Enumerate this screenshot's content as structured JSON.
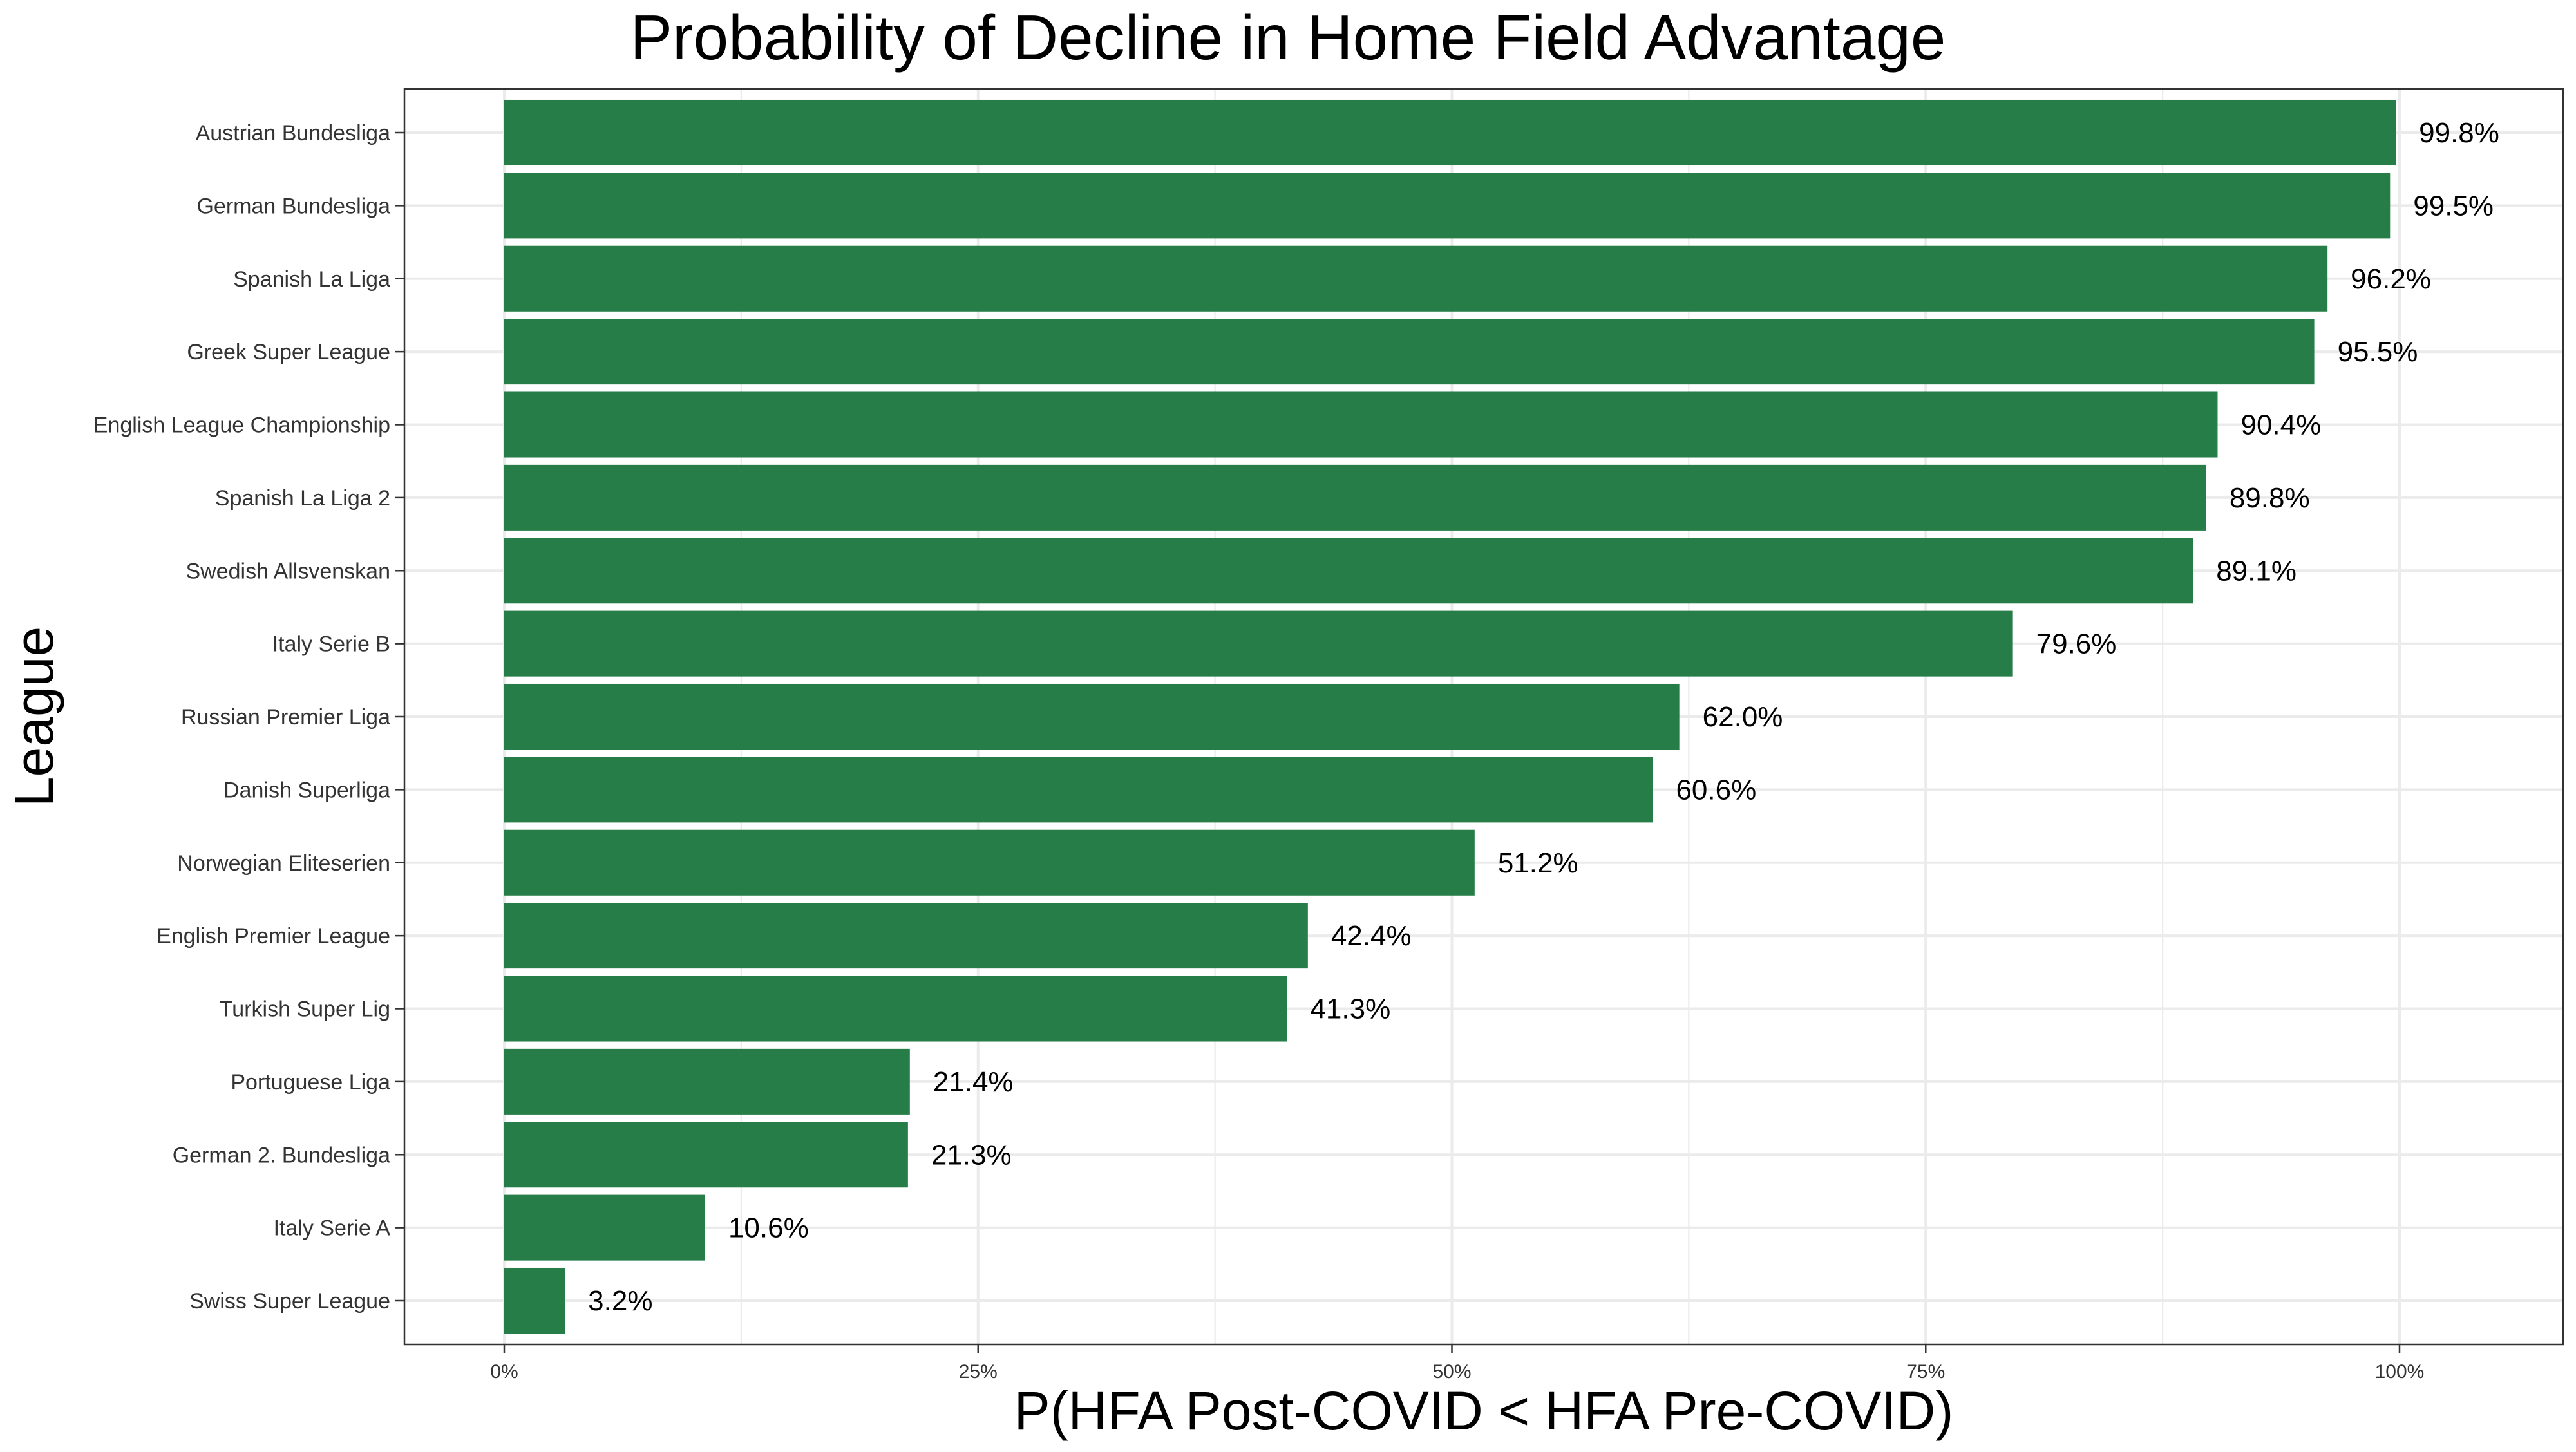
{
  "chart_data": {
    "type": "bar",
    "orientation": "horizontal",
    "title": "Probability of Decline in Home Field Advantage",
    "xlabel": "P(HFA Post-COVID < HFA Pre-COVID)",
    "ylabel": "League",
    "xlim": [
      0,
      1
    ],
    "x_ticks": [
      0,
      0.25,
      0.5,
      0.75,
      1.0
    ],
    "x_tick_labels": [
      "0%",
      "25%",
      "50%",
      "75%",
      "100%"
    ],
    "grid": true,
    "legend": "none",
    "bar_color": "#267d47",
    "categories": [
      "Austrian Bundesliga",
      "German Bundesliga",
      "Spanish La Liga",
      "Greek Super League",
      "English League Championship",
      "Spanish La Liga 2",
      "Swedish Allsvenskan",
      "Italy Serie B",
      "Russian Premier Liga",
      "Danish Superliga",
      "Norwegian Eliteserien",
      "English Premier League",
      "Turkish Super Lig",
      "Portuguese Liga",
      "German 2. Bundesliga",
      "Italy Serie A",
      "Swiss Super League"
    ],
    "values": [
      0.998,
      0.995,
      0.962,
      0.955,
      0.904,
      0.898,
      0.891,
      0.796,
      0.62,
      0.606,
      0.512,
      0.424,
      0.413,
      0.214,
      0.213,
      0.106,
      0.032
    ],
    "data_labels": [
      "99.8%",
      "99.5%",
      "96.2%",
      "95.5%",
      "90.4%",
      "89.8%",
      "89.1%",
      "79.6%",
      "62.0%",
      "60.6%",
      "51.2%",
      "42.4%",
      "41.3%",
      "21.4%",
      "21.3%",
      "10.6%",
      "3.2%"
    ]
  }
}
